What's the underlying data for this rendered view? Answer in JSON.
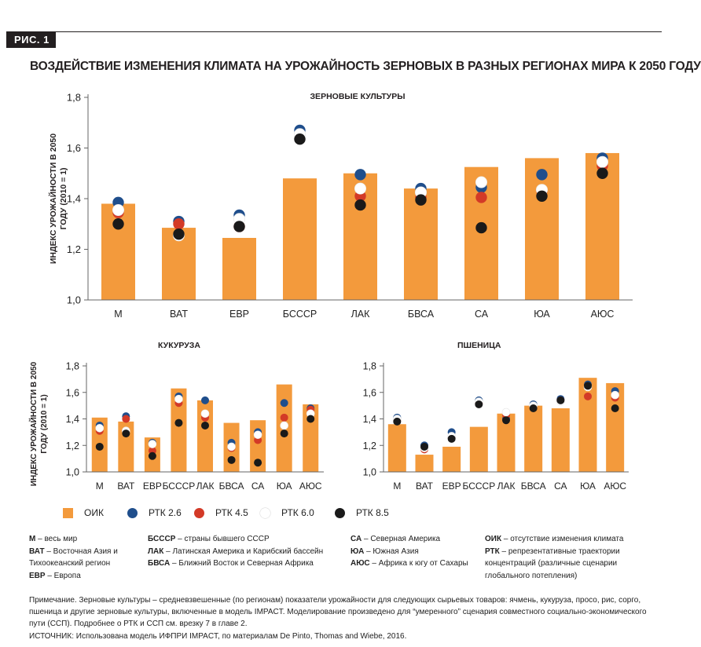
{
  "figure": {
    "label": "РИС. 1",
    "title": "ВОЗДЕЙСТВИЕ ИЗМЕНЕНИЯ КЛИМАТА НА УРОЖАЙНОСТЬ ЗЕРНОВЫХ В РАЗНЫХ РЕГИОНАХ МИРА К 2050 ГОДУ"
  },
  "colors": {
    "bar": "#f39a3c",
    "rtk26": "#1f4e8c",
    "rtk45": "#d33a27",
    "rtk60": "#ffffff",
    "rtk85": "#1a1a1a"
  },
  "chart_data": [
    {
      "type": "bar",
      "title": "ЗЕРНОВЫЕ КУЛЬТУРЫ",
      "ylabel": "ИНДЕКС УРОЖАЙНОСТИ В 2050 ГОДУ (2010 = 1)",
      "ylim": [
        1.0,
        1.8
      ],
      "yticks": [
        "1,0",
        "1,2",
        "1,4",
        "1,6",
        "1,8"
      ],
      "categories": [
        "М",
        "ВАТ",
        "ЕВР",
        "БСССР",
        "ЛАК",
        "БВСА",
        "СА",
        "ЮА",
        "АЮС"
      ],
      "series": [
        {
          "name": "ОИК",
          "values": [
            1.38,
            1.285,
            1.245,
            1.48,
            1.5,
            1.44,
            1.525,
            1.56,
            1.58
          ]
        },
        {
          "name": "РТК 2.6",
          "values": [
            1.385,
            1.31,
            1.335,
            1.67,
            1.495,
            1.44,
            1.445,
            1.495,
            1.56
          ]
        },
        {
          "name": "РТК 4.5",
          "values": [
            1.345,
            1.3,
            1.29,
            1.655,
            1.41,
            1.405,
            1.405,
            1.43,
            1.53
          ]
        },
        {
          "name": "РТК 6.0",
          "values": [
            1.355,
            1.255,
            1.32,
            1.655,
            1.44,
            1.425,
            1.465,
            1.435,
            1.545
          ]
        },
        {
          "name": "РТК 8.5",
          "values": [
            1.3,
            1.26,
            1.29,
            1.635,
            1.375,
            1.395,
            1.285,
            1.41,
            1.5
          ]
        }
      ]
    },
    {
      "type": "bar",
      "title": "КУКУРУЗА",
      "ylabel": "ИНДЕКС УРОЖАЙНОСТИ В 2050 ГОДУ (2010 = 1)",
      "ylim": [
        1.0,
        1.8
      ],
      "yticks": [
        "1,0",
        "1,2",
        "1,4",
        "1,6",
        "1,8"
      ],
      "categories": [
        "М",
        "ВАТ",
        "ЕВР",
        "БСССР",
        "ЛАК",
        "БВСА",
        "СА",
        "ЮА",
        "АЮС"
      ],
      "series": [
        {
          "name": "ОИК",
          "values": [
            1.41,
            1.38,
            1.26,
            1.63,
            1.54,
            1.37,
            1.39,
            1.66,
            1.51
          ]
        },
        {
          "name": "РТК 2.6",
          "values": [
            1.35,
            1.42,
            1.22,
            1.57,
            1.54,
            1.22,
            1.3,
            1.52,
            1.48
          ]
        },
        {
          "name": "РТК 4.5",
          "values": [
            1.31,
            1.4,
            1.16,
            1.52,
            1.41,
            1.18,
            1.24,
            1.41,
            1.47
          ]
        },
        {
          "name": "РТК 6.0",
          "values": [
            1.33,
            1.31,
            1.21,
            1.55,
            1.44,
            1.19,
            1.28,
            1.35,
            1.44
          ]
        },
        {
          "name": "РТК 8.5",
          "values": [
            1.19,
            1.29,
            1.12,
            1.37,
            1.35,
            1.09,
            1.07,
            1.29,
            1.4
          ]
        }
      ]
    },
    {
      "type": "bar",
      "title": "ПШЕНИЦА",
      "ylim": [
        1.0,
        1.8
      ],
      "yticks": [
        "1,0",
        "1,2",
        "1,4",
        "1,6",
        "1,8"
      ],
      "categories": [
        "М",
        "ВАТ",
        "ЕВР",
        "БСССР",
        "ЛАК",
        "БВСА",
        "СА",
        "ЮА",
        "АЮС"
      ],
      "series": [
        {
          "name": "ОИК",
          "values": [
            1.36,
            1.13,
            1.19,
            1.34,
            1.44,
            1.5,
            1.48,
            1.71,
            1.67
          ]
        },
        {
          "name": "РТК 2.6",
          "values": [
            1.41,
            1.2,
            1.3,
            1.54,
            1.4,
            1.51,
            1.55,
            1.66,
            1.61
          ]
        },
        {
          "name": "РТК 4.5",
          "values": [
            1.39,
            1.17,
            1.26,
            1.52,
            1.43,
            1.49,
            1.54,
            1.57,
            1.56
          ]
        },
        {
          "name": "РТК 6.0",
          "values": [
            1.4,
            1.18,
            1.27,
            1.53,
            1.45,
            1.5,
            1.53,
            1.64,
            1.58
          ]
        },
        {
          "name": "РТК 8.5",
          "values": [
            1.38,
            1.19,
            1.25,
            1.51,
            1.39,
            1.48,
            1.54,
            1.65,
            1.48
          ]
        }
      ]
    }
  ],
  "legend": [
    {
      "label": "ОИК",
      "kind": "bar"
    },
    {
      "label": "РТК 2.6",
      "kind": "rtk26"
    },
    {
      "label": "РТК 4.5",
      "kind": "rtk45"
    },
    {
      "label": "РТК 6.0",
      "kind": "rtk60"
    },
    {
      "label": "РТК 8.5",
      "kind": "rtk85"
    }
  ],
  "abbreviations": {
    "col1": [
      {
        "abbr": "М",
        "text": " – весь мир"
      },
      {
        "abbr": "ВАТ",
        "text": " – Восточная Азия и Тихоокеанский регион"
      },
      {
        "abbr": "ЕВР",
        "text": " – Европа"
      }
    ],
    "col2": [
      {
        "abbr": "БСССР",
        "text": " – страны бывшего СССР"
      },
      {
        "abbr": "ЛАК",
        "text": " – Латинская Америка и Карибский бассейн"
      },
      {
        "abbr": "БВСА",
        "text": " – Ближний Восток и Северная Африка"
      }
    ],
    "col3": [
      {
        "abbr": "СА",
        "text": " – Северная Америка"
      },
      {
        "abbr": "ЮА",
        "text": " – Южная Азия"
      },
      {
        "abbr": "АЮС",
        "text": " – Африка к югу от Сахары"
      }
    ],
    "col4": [
      {
        "abbr": "ОИК",
        "text": " – отсутствие изменения климата"
      },
      {
        "abbr": "РТК",
        "text": " – репрезентативные траектории концентраций (различные сценарии глобального потепления)"
      }
    ]
  },
  "note": "Примечание. Зерновые культуры – средневзвешенные (по регионам) показатели урожайности для следующих сырьевых товаров: ячмень, кукуруза, просо, рис, сорго, пшеница и другие зерновые культуры, включенные в модель IMPACT. Моделирование произведено для “умеренного” сценария совместного социально-экономического пути (ССП). Подробнее о РТК и ССП см. врезку 7 в главе 2.",
  "source": "ИСТОЧНИК: Использована модель ИФПРИ IMPACT, по материалам De Pinto, Thomas and Wiebe, 2016."
}
